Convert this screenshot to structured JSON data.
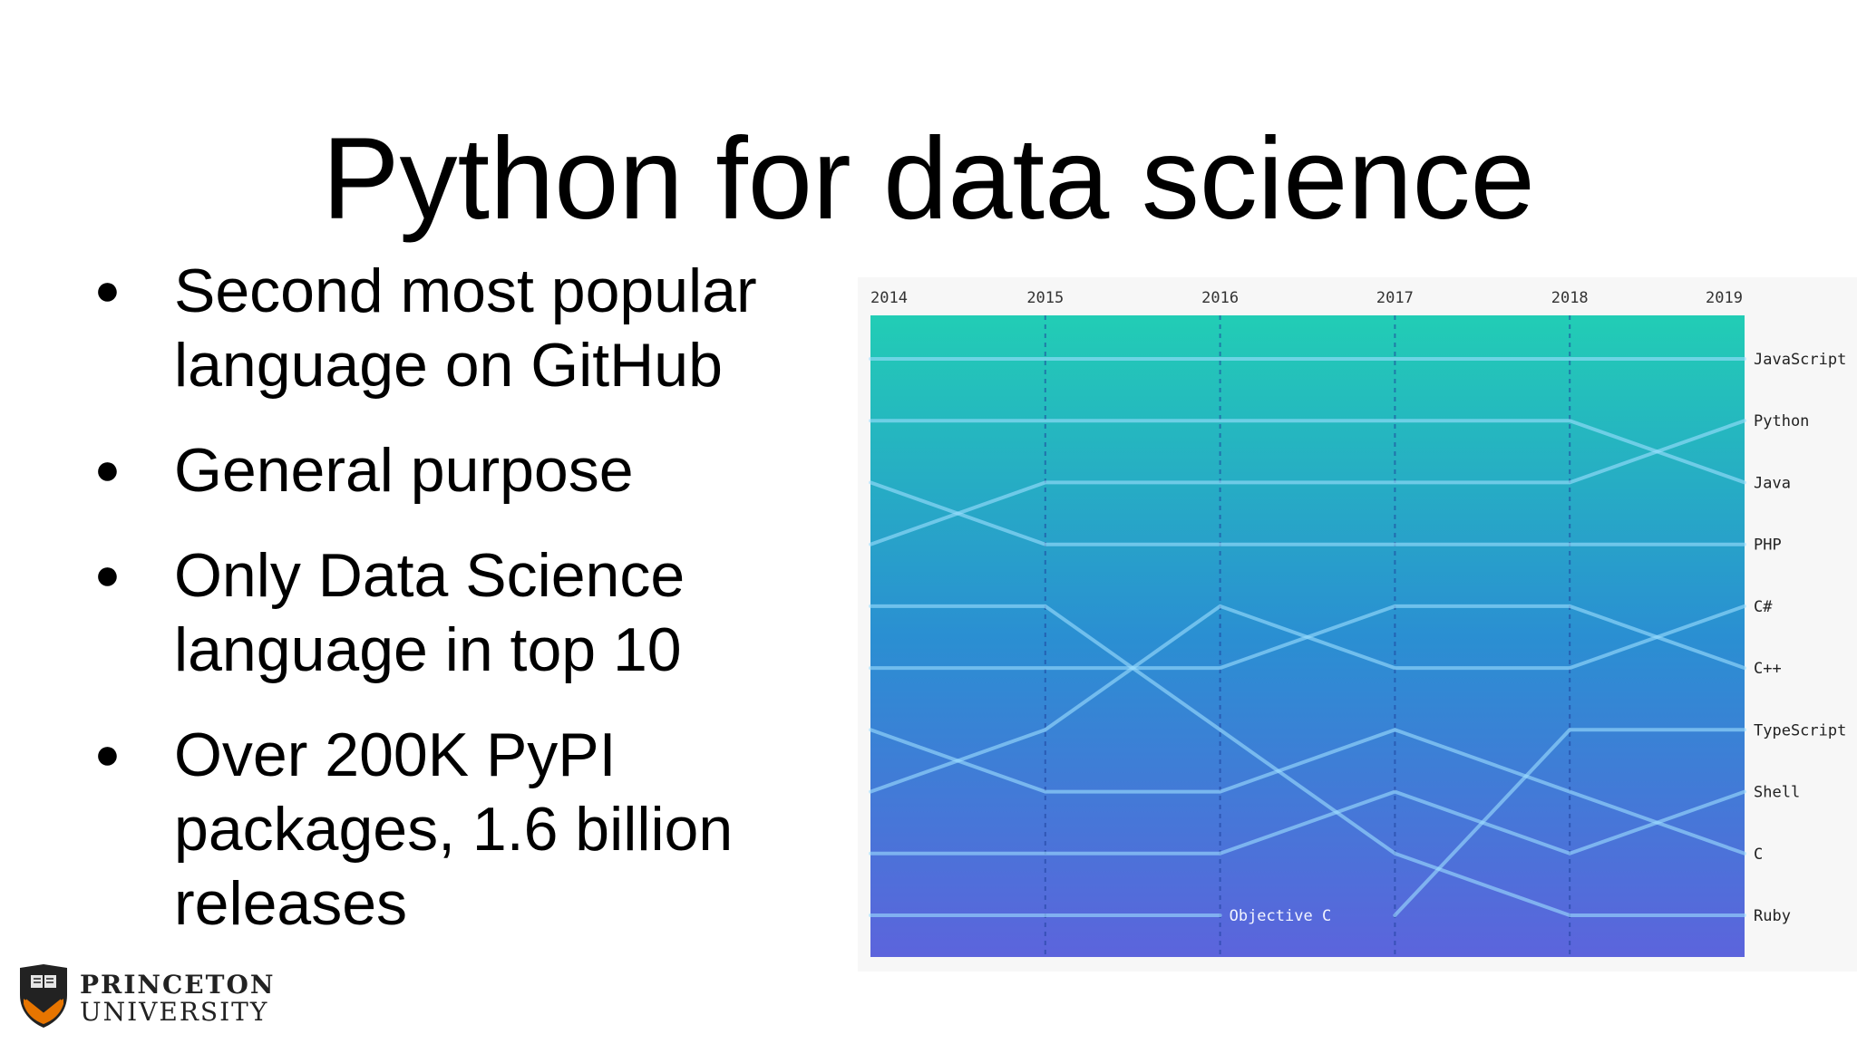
{
  "slide": {
    "title": "Python for data science",
    "bullets": [
      "Second most popular language on GitHub",
      "General purpose",
      "Only Data Science language in top 10",
      "Over 200K PyPI packages, 1.6 billion releases"
    ]
  },
  "logo": {
    "line1": "PRINCETON",
    "line2": "UNIVERSITY"
  },
  "chart_data": {
    "type": "line",
    "title": "",
    "xlabel": "",
    "ylabel": "",
    "y_axis": "rank (1 = top), inverted",
    "x": [
      "2014",
      "2015",
      "2016",
      "2017",
      "2018",
      "2019"
    ],
    "ylim": [
      1,
      10
    ],
    "grid": true,
    "legend": "right (labels at line ends)",
    "series": [
      {
        "name": "JavaScript",
        "values": [
          1,
          1,
          1,
          1,
          1,
          1
        ]
      },
      {
        "name": "Python",
        "values": [
          4,
          3,
          3,
          3,
          3,
          2
        ]
      },
      {
        "name": "Java",
        "values": [
          2,
          2,
          2,
          2,
          2,
          3
        ]
      },
      {
        "name": "PHP",
        "values": [
          3,
          4,
          4,
          4,
          4,
          4
        ]
      },
      {
        "name": "C#",
        "values": [
          8,
          7,
          5,
          6,
          6,
          5
        ]
      },
      {
        "name": "C++",
        "values": [
          6,
          6,
          6,
          5,
          5,
          6
        ]
      },
      {
        "name": "TypeScript",
        "values": [
          null,
          null,
          null,
          10,
          7,
          7
        ]
      },
      {
        "name": "Shell",
        "values": [
          9,
          9,
          9,
          8,
          9,
          8
        ]
      },
      {
        "name": "C",
        "values": [
          7,
          8,
          8,
          7,
          8,
          9
        ]
      },
      {
        "name": "Ruby",
        "values": [
          5,
          5,
          7,
          9,
          10,
          10
        ]
      },
      {
        "name": "Objective C",
        "values": [
          10,
          10,
          10,
          null,
          null,
          null
        ]
      }
    ],
    "annotations": [
      {
        "text": "Objective C",
        "x": "2016",
        "y": 10
      }
    ],
    "colors": {
      "top": "#22cdb5",
      "middle": "#2a8fd2",
      "bottom": "#5c64dc",
      "line": "#9fe0ff",
      "panel": "#f7f7f7"
    }
  }
}
